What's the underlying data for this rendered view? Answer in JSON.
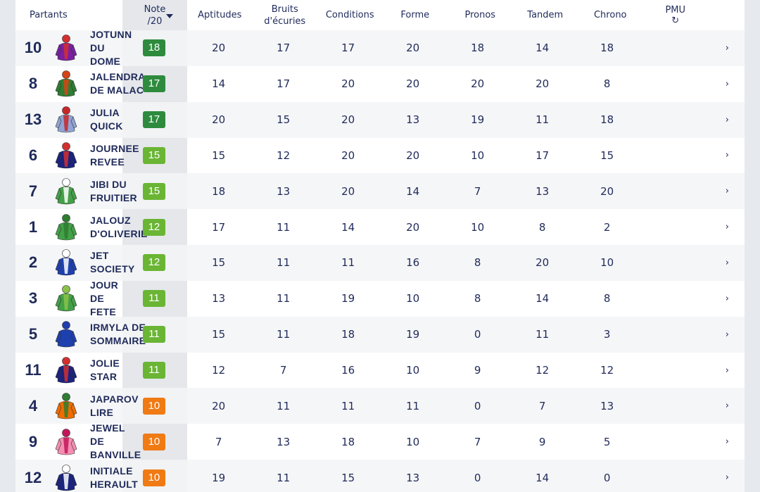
{
  "header": {
    "partants": "Partants",
    "note_line1": "Note",
    "note_line2": "/20",
    "aptitudes": "Aptitudes",
    "bruits_line1": "Bruits",
    "bruits_line2": "d'écuries",
    "conditions": "Conditions",
    "forme": "Forme",
    "pronos": "Pronos",
    "tandem": "Tandem",
    "chrono": "Chrono",
    "pmu": "PMU",
    "refresh_icon": "↻",
    "sort_icon": "caret-down"
  },
  "colors": {
    "badge_dark_green": "#2e8b3e",
    "badge_light_green": "#6ab534",
    "badge_orange": "#f07a14",
    "text": "#1f2a5a"
  },
  "rows": [
    {
      "num": "10",
      "name": "JOTUNN DU DOME",
      "note": "18",
      "tier": "dark",
      "aptitudes": "20",
      "bruits": "17",
      "conditions": "17",
      "forme": "20",
      "pronos": "18",
      "tandem": "14",
      "chrono": "18",
      "arrow": "›",
      "silk": [
        "#7a1fa2",
        "#d32f2f"
      ]
    },
    {
      "num": "8",
      "name": "JALENDRA DE MALAC",
      "note": "17",
      "tier": "dark",
      "aptitudes": "14",
      "bruits": "17",
      "conditions": "20",
      "forme": "20",
      "pronos": "20",
      "tandem": "20",
      "chrono": "8",
      "arrow": "›",
      "silk": [
        "#2e7d32",
        "#d84315"
      ]
    },
    {
      "num": "13",
      "name": "JULIA QUICK",
      "note": "17",
      "tier": "dark",
      "aptitudes": "20",
      "bruits": "15",
      "conditions": "20",
      "forme": "13",
      "pronos": "19",
      "tandem": "11",
      "chrono": "18",
      "arrow": "›",
      "silk": [
        "#90a4d4",
        "#c62828"
      ]
    },
    {
      "num": "6",
      "name": "JOURNEE REVEE",
      "note": "15",
      "tier": "light",
      "aptitudes": "15",
      "bruits": "12",
      "conditions": "20",
      "forme": "20",
      "pronos": "10",
      "tandem": "17",
      "chrono": "15",
      "arrow": "›",
      "silk": [
        "#1a237e",
        "#d32f2f"
      ]
    },
    {
      "num": "7",
      "name": "JIBI DU FRUITIER",
      "note": "15",
      "tier": "light",
      "aptitudes": "18",
      "bruits": "13",
      "conditions": "20",
      "forme": "14",
      "pronos": "7",
      "tandem": "13",
      "chrono": "20",
      "arrow": "›",
      "silk": [
        "#43a047",
        "#ffffff"
      ]
    },
    {
      "num": "1",
      "name": "JALOUZ D'OLIVERIE",
      "note": "12",
      "tier": "light",
      "aptitudes": "17",
      "bruits": "11",
      "conditions": "14",
      "forme": "20",
      "pronos": "10",
      "tandem": "8",
      "chrono": "2",
      "arrow": "›",
      "silk": [
        "#43a047",
        "#2e7d32"
      ]
    },
    {
      "num": "2",
      "name": "JET SOCIETY",
      "note": "12",
      "tier": "light",
      "aptitudes": "15",
      "bruits": "11",
      "conditions": "11",
      "forme": "16",
      "pronos": "8",
      "tandem": "20",
      "chrono": "10",
      "arrow": "›",
      "silk": [
        "#1e3fae",
        "#ffffff"
      ]
    },
    {
      "num": "3",
      "name": "JOUR DE FETE",
      "note": "11",
      "tier": "light",
      "aptitudes": "13",
      "bruits": "11",
      "conditions": "19",
      "forme": "10",
      "pronos": "8",
      "tandem": "14",
      "chrono": "8",
      "arrow": "›",
      "silk": [
        "#43a047",
        "#8bc34a"
      ]
    },
    {
      "num": "5",
      "name": "IRMYLA DE SOMMAIRE",
      "note": "11",
      "tier": "light",
      "aptitudes": "15",
      "bruits": "11",
      "conditions": "18",
      "forme": "19",
      "pronos": "0",
      "tandem": "11",
      "chrono": "3",
      "arrow": "›",
      "silk": [
        "#1e3fae",
        "#1e3fae"
      ]
    },
    {
      "num": "11",
      "name": "JOLIE STAR",
      "note": "11",
      "tier": "light",
      "aptitudes": "12",
      "bruits": "7",
      "conditions": "16",
      "forme": "10",
      "pronos": "9",
      "tandem": "12",
      "chrono": "12",
      "arrow": "›",
      "silk": [
        "#1a237e",
        "#d32f2f"
      ]
    },
    {
      "num": "4",
      "name": "JAPAROV LIRE",
      "note": "10",
      "tier": "orange",
      "aptitudes": "20",
      "bruits": "11",
      "conditions": "11",
      "forme": "11",
      "pronos": "0",
      "tandem": "7",
      "chrono": "13",
      "arrow": "›",
      "silk": [
        "#ef6c00",
        "#2e7d32"
      ]
    },
    {
      "num": "9",
      "name": "JEWEL DE BANVILLE",
      "note": "10",
      "tier": "orange",
      "aptitudes": "7",
      "bruits": "13",
      "conditions": "18",
      "forme": "10",
      "pronos": "7",
      "tandem": "9",
      "chrono": "5",
      "arrow": "›",
      "silk": [
        "#f48fb1",
        "#c2185b"
      ]
    },
    {
      "num": "12",
      "name": "INITIALE HERAULT",
      "note": "10",
      "tier": "orange",
      "aptitudes": "19",
      "bruits": "11",
      "conditions": "15",
      "forme": "13",
      "pronos": "0",
      "tandem": "14",
      "chrono": "0",
      "arrow": "›",
      "silk": [
        "#1a237e",
        "#ffffff"
      ]
    }
  ]
}
